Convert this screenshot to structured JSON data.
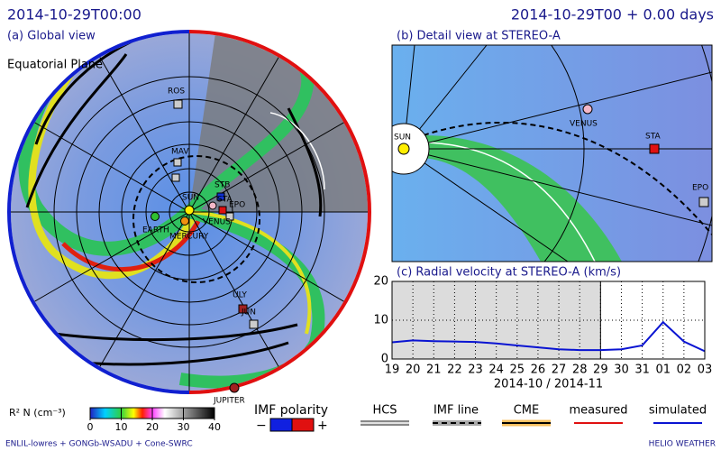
{
  "header": {
    "time": "2014-10-29T00:00",
    "elapsed": "2014-10-29T00 + 0.00 days"
  },
  "global_view": {
    "title": "(a) Global view",
    "plane": "Equatorial Plane",
    "labels": [
      "ROS",
      "MAV",
      "SUN",
      "STB",
      "STA",
      "EPO",
      "VENUS",
      "EARTH",
      "MERCURY",
      "ULY",
      "JUN",
      "JUPITER"
    ]
  },
  "detail_view": {
    "title": "(b) Detail view at STEREO-A",
    "labels": [
      "SUN",
      "VENUS",
      "STA",
      "EPO"
    ]
  },
  "colorbar": {
    "title": "R² N (cm⁻³)",
    "ticks": [
      0,
      10,
      20,
      30,
      40
    ],
    "lim": [
      0,
      40
    ]
  },
  "polarity": {
    "title": "IMF polarity",
    "minus": "−",
    "plus": "+"
  },
  "legend": [
    "HCS",
    "IMF line",
    "CME",
    "measured"
  ],
  "footer": {
    "left": "ENLIL-lowres + GONGb-WSADU + Cone-SWRC",
    "right": "HELIO WEATHER"
  },
  "chart_data": {
    "type": "line",
    "title": "(c) Radial velocity at STEREO-A (km/s)",
    "categories": [
      "19",
      "20",
      "21",
      "22",
      "23",
      "24",
      "25",
      "26",
      "27",
      "28",
      "29",
      "30",
      "31",
      "01",
      "02",
      "03"
    ],
    "series": [
      {
        "name": "simulated",
        "color": "#0a14d2",
        "values": [
          4.3,
          4.8,
          4.6,
          4.5,
          4.4,
          4.0,
          3.5,
          3.0,
          2.5,
          2.3,
          2.3,
          2.5,
          3.5,
          9.5,
          4.5,
          2.0
        ]
      }
    ],
    "ylim": [
      0,
      20
    ],
    "yticks": [
      0,
      10,
      20
    ],
    "xlabel": "2014-10 / 2014-11",
    "grid": true
  }
}
